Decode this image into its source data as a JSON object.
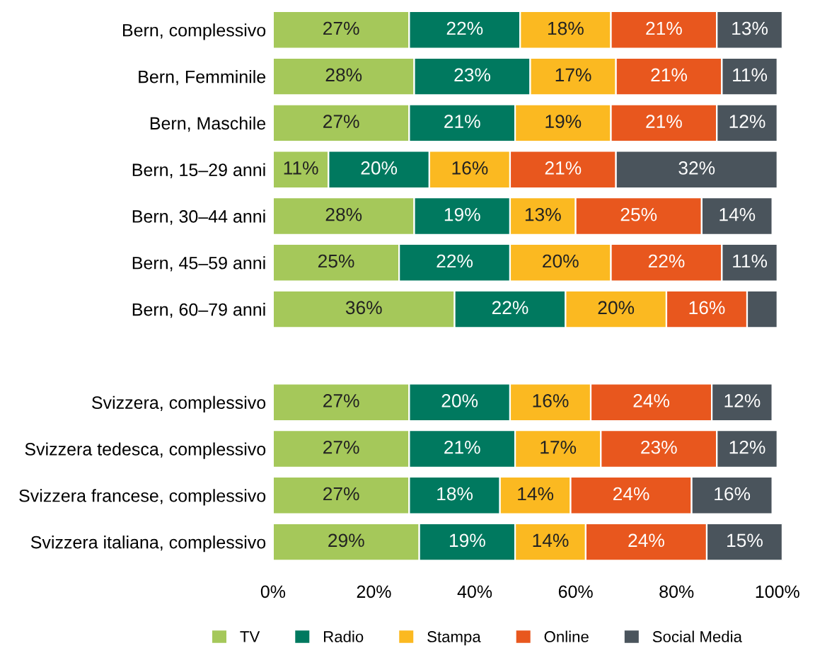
{
  "chart_data": {
    "type": "bar",
    "orientation": "horizontal",
    "stacked": true,
    "categories": [
      "Bern, complessivo",
      "Bern, Femminile",
      "Bern, Maschile",
      "Bern, 15–29 anni",
      "Bern, 30–44 anni",
      "Bern, 45–59 anni",
      "Bern, 60–79 anni",
      null,
      "Svizzera, complessivo",
      "Svizzera tedesca, complessivo",
      "Svizzera francese, complessivo",
      "Svizzera italiana, complessivo"
    ],
    "series": [
      {
        "name": "TV",
        "color": "#a5c85a",
        "values": [
          27,
          28,
          27,
          11,
          28,
          25,
          36,
          null,
          27,
          27,
          27,
          29
        ],
        "value_labels": [
          "27%",
          "28%",
          "27%",
          "11%",
          "28%",
          "25%",
          "36%",
          null,
          "27%",
          "27%",
          "27%",
          "29%"
        ]
      },
      {
        "name": "Radio",
        "color": "#00795f",
        "values": [
          22,
          23,
          21,
          20,
          19,
          22,
          22,
          null,
          20,
          21,
          18,
          19
        ],
        "value_labels": [
          "22%",
          "23%",
          "21%",
          "20%",
          "19%",
          "22%",
          "22%",
          null,
          "20%",
          "21%",
          "18%",
          "19%"
        ]
      },
      {
        "name": "Stampa",
        "color": "#fbb921",
        "values": [
          18,
          17,
          19,
          16,
          13,
          20,
          20,
          null,
          16,
          17,
          14,
          14
        ],
        "value_labels": [
          "18%",
          "17%",
          "19%",
          "16%",
          "13%",
          "20%",
          "20%",
          null,
          "16%",
          "17%",
          "14%",
          "14%"
        ]
      },
      {
        "name": "Online",
        "color": "#e8571e",
        "values": [
          21,
          21,
          21,
          21,
          25,
          22,
          16,
          null,
          24,
          23,
          24,
          24
        ],
        "value_labels": [
          "21%",
          "21%",
          "21%",
          "21%",
          "25%",
          "22%",
          "16%",
          null,
          "24%",
          "23%",
          "24%",
          "24%"
        ]
      },
      {
        "name": "Social Media",
        "color": "#4a545c",
        "values": [
          13,
          11,
          12,
          32,
          14,
          11,
          6,
          null,
          12,
          12,
          16,
          15
        ],
        "value_labels": [
          "13%",
          "11%",
          "12%",
          "32%",
          "14%",
          "11%",
          null,
          null,
          "12%",
          "12%",
          "16%",
          "15%"
        ]
      }
    ],
    "xlim": [
      0,
      101
    ],
    "xticks": [
      {
        "value": 0,
        "label": "0%"
      },
      {
        "value": 20,
        "label": "20%"
      },
      {
        "value": 40,
        "label": "40%"
      },
      {
        "value": 60,
        "label": "60%"
      },
      {
        "value": 80,
        "label": "80%"
      },
      {
        "value": 100,
        "label": "100%"
      }
    ],
    "legend": "bottom",
    "grid": false
  }
}
